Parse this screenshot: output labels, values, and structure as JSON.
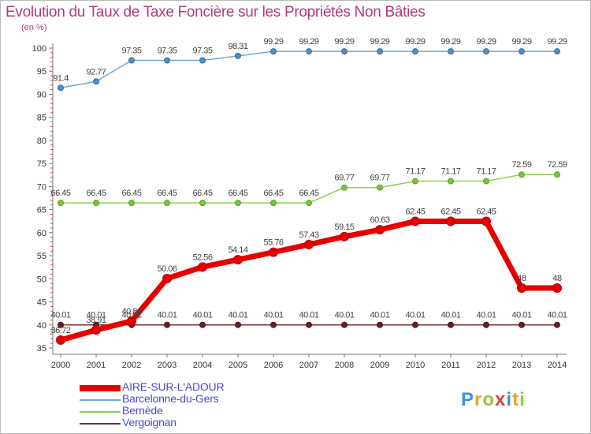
{
  "title": "Evolution du Taux de Taxe Foncière sur les Propriétés Non Bâties",
  "unit": "(en %)",
  "logo_text": "Proxiti",
  "chart_data": {
    "type": "line",
    "title": "Evolution du Taux de Taxe Foncière sur les Propriétés Non Bâties",
    "ylabel": "(en %)",
    "xlabel": "",
    "ylim": [
      35,
      100
    ],
    "yticks": [
      35,
      40,
      45,
      50,
      55,
      60,
      65,
      70,
      75,
      80,
      85,
      90,
      95,
      100
    ],
    "grid": false,
    "legend_position": "bottom-left",
    "categories": [
      "2000",
      "2001",
      "2002",
      "2003",
      "2004",
      "2005",
      "2006",
      "2007",
      "2008",
      "2009",
      "2010",
      "2011",
      "2012",
      "2013",
      "2014"
    ],
    "series": [
      {
        "name": "AIRE-SUR-L'ADOUR",
        "color": "#e60000",
        "values": [
          36.72,
          38.91,
          40.84,
          50.06,
          52.56,
          54.14,
          55.76,
          57.43,
          59.15,
          60.63,
          62.45,
          62.45,
          62.45,
          48,
          48
        ],
        "labels": [
          "36.72",
          "38.91",
          "40.84",
          "50.06",
          "52.56",
          "54.14",
          "55.76",
          "57.43",
          "59.15",
          "60.63",
          "62.45",
          "62.45",
          "62.45",
          "48",
          "48"
        ]
      },
      {
        "name": "Barcelonne-du-Gers",
        "color": "#6fa8d8",
        "values": [
          91.4,
          92.77,
          97.35,
          97.35,
          97.35,
          98.31,
          99.29,
          99.29,
          99.29,
          99.29,
          99.29,
          99.29,
          99.29,
          99.29,
          99.29
        ],
        "labels": [
          "91.4",
          "92.77",
          "97.35",
          "97.35",
          "97.35",
          "98.31",
          "99.29",
          "99.29",
          "99.29",
          "99.29",
          "99.29",
          "99.29",
          "99.29",
          "99.29",
          "99.29"
        ]
      },
      {
        "name": "Bernède",
        "color": "#8fd050",
        "values": [
          66.45,
          66.45,
          66.45,
          66.45,
          66.45,
          66.45,
          66.45,
          66.45,
          69.77,
          69.77,
          71.17,
          71.17,
          71.17,
          72.59,
          72.59
        ],
        "labels": [
          "66.45",
          "66.45",
          "66.45",
          "66.45",
          "66.45",
          "66.45",
          "66.45",
          "66.45",
          "69.77",
          "69.77",
          "71.17",
          "71.17",
          "71.17",
          "72.59",
          "72.59"
        ]
      },
      {
        "name": "Vergoignan",
        "color": "#7a3030",
        "values": [
          40.01,
          40.01,
          40.01,
          40.01,
          40.01,
          40.01,
          40.01,
          40.01,
          40.01,
          40.01,
          40.01,
          40.01,
          40.01,
          40.01,
          40.01
        ],
        "labels": [
          "40.01",
          "40.01",
          "40.01",
          "40.01",
          "40.01",
          "40.01",
          "40.01",
          "40.01",
          "40.01",
          "40.01",
          "40.01",
          "40.01",
          "40.01",
          "40.01",
          "40.01"
        ]
      }
    ]
  }
}
